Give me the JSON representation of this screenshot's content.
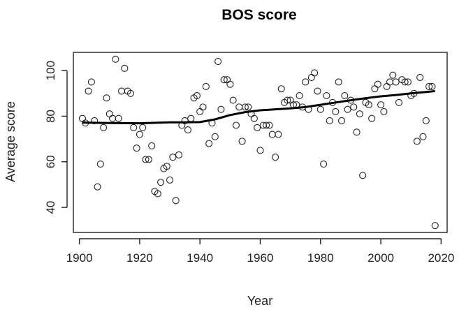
{
  "chart_data": {
    "type": "scatter",
    "title": "BOS score",
    "xlabel": "Year",
    "ylabel": "Average score",
    "xlim": [
      1898,
      2022
    ],
    "ylim": [
      29,
      108
    ],
    "xticks": [
      1900,
      1920,
      1940,
      1960,
      1980,
      2000,
      2020
    ],
    "yticks": [
      40,
      60,
      80,
      100
    ],
    "grid": false,
    "legend": "none",
    "colors": {
      "points": "#222222",
      "trend": "#000000",
      "axis": "#222222"
    },
    "points": [
      [
        1901,
        79
      ],
      [
        1902,
        77
      ],
      [
        1903,
        91
      ],
      [
        1904,
        95
      ],
      [
        1905,
        78
      ],
      [
        1906,
        49
      ],
      [
        1907,
        59
      ],
      [
        1908,
        75
      ],
      [
        1909,
        88
      ],
      [
        1910,
        81
      ],
      [
        1911,
        79
      ],
      [
        1912,
        105
      ],
      [
        1913,
        79
      ],
      [
        1914,
        91
      ],
      [
        1915,
        101
      ],
      [
        1916,
        91
      ],
      [
        1917,
        90
      ],
      [
        1918,
        75
      ],
      [
        1919,
        66
      ],
      [
        1920,
        72
      ],
      [
        1921,
        75
      ],
      [
        1922,
        61
      ],
      [
        1923,
        61
      ],
      [
        1924,
        67
      ],
      [
        1925,
        47
      ],
      [
        1926,
        46
      ],
      [
        1927,
        51
      ],
      [
        1928,
        57
      ],
      [
        1929,
        58
      ],
      [
        1930,
        52
      ],
      [
        1931,
        62
      ],
      [
        1932,
        43
      ],
      [
        1933,
        63
      ],
      [
        1934,
        76
      ],
      [
        1935,
        78
      ],
      [
        1936,
        74
      ],
      [
        1937,
        79
      ],
      [
        1938,
        88
      ],
      [
        1939,
        89
      ],
      [
        1940,
        82
      ],
      [
        1941,
        84
      ],
      [
        1942,
        93
      ],
      [
        1943,
        68
      ],
      [
        1944,
        77
      ],
      [
        1945,
        71
      ],
      [
        1946,
        104
      ],
      [
        1947,
        83
      ],
      [
        1948,
        96
      ],
      [
        1949,
        96
      ],
      [
        1950,
        94
      ],
      [
        1951,
        87
      ],
      [
        1952,
        76
      ],
      [
        1953,
        84
      ],
      [
        1954,
        69
      ],
      [
        1955,
        84
      ],
      [
        1956,
        84
      ],
      [
        1957,
        81
      ],
      [
        1958,
        79
      ],
      [
        1959,
        75
      ],
      [
        1960,
        65
      ],
      [
        1961,
        76
      ],
      [
        1962,
        76
      ],
      [
        1963,
        76
      ],
      [
        1964,
        72
      ],
      [
        1965,
        62
      ],
      [
        1966,
        72
      ],
      [
        1967,
        92
      ],
      [
        1968,
        86
      ],
      [
        1969,
        87
      ],
      [
        1970,
        87
      ],
      [
        1971,
        85
      ],
      [
        1972,
        85
      ],
      [
        1973,
        89
      ],
      [
        1974,
        84
      ],
      [
        1975,
        95
      ],
      [
        1976,
        83
      ],
      [
        1977,
        97
      ],
      [
        1978,
        99
      ],
      [
        1979,
        91
      ],
      [
        1980,
        83
      ],
      [
        1981,
        59
      ],
      [
        1982,
        89
      ],
      [
        1983,
        78
      ],
      [
        1984,
        86
      ],
      [
        1985,
        82
      ],
      [
        1986,
        95
      ],
      [
        1987,
        78
      ],
      [
        1988,
        89
      ],
      [
        1989,
        83
      ],
      [
        1990,
        87
      ],
      [
        1991,
        84
      ],
      [
        1992,
        73
      ],
      [
        1993,
        81
      ],
      [
        1994,
        54
      ],
      [
        1995,
        86
      ],
      [
        1996,
        85
      ],
      [
        1997,
        79
      ],
      [
        1998,
        92
      ],
      [
        1999,
        94
      ],
      [
        2000,
        85
      ],
      [
        2001,
        82
      ],
      [
        2002,
        93
      ],
      [
        2003,
        95
      ],
      [
        2004,
        98
      ],
      [
        2005,
        95
      ],
      [
        2006,
        86
      ],
      [
        2007,
        96
      ],
      [
        2008,
        95
      ],
      [
        2009,
        95
      ],
      [
        2010,
        89
      ],
      [
        2011,
        90
      ],
      [
        2012,
        69
      ],
      [
        2013,
        97
      ],
      [
        2014,
        71
      ],
      [
        2015,
        78
      ],
      [
        2016,
        93
      ],
      [
        2017,
        93
      ],
      [
        2018,
        32
      ]
    ],
    "trend": [
      [
        1901,
        77.2
      ],
      [
        1910,
        77
      ],
      [
        1920,
        76.9
      ],
      [
        1930,
        77.3
      ],
      [
        1935,
        77.3
      ],
      [
        1940,
        77.4
      ],
      [
        1945,
        78.6
      ],
      [
        1950,
        80.5
      ],
      [
        1955,
        81.8
      ],
      [
        1960,
        82.6
      ],
      [
        1965,
        83.0
      ],
      [
        1970,
        83.4
      ],
      [
        1975,
        84.0
      ],
      [
        1980,
        85.0
      ],
      [
        1985,
        86.0
      ],
      [
        1990,
        87.0
      ],
      [
        1995,
        87.9
      ],
      [
        2000,
        88.7
      ],
      [
        2005,
        89.3
      ],
      [
        2010,
        90.0
      ],
      [
        2015,
        90.6
      ],
      [
        2018,
        91.0
      ]
    ]
  }
}
